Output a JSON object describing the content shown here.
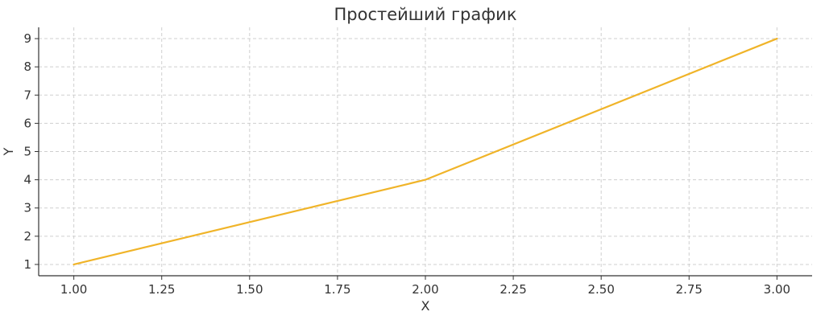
{
  "chart_data": {
    "type": "line",
    "title": "Простейший график",
    "xlabel": "X",
    "ylabel": "Y",
    "xlim": [
      0.9,
      3.1
    ],
    "ylim": [
      0.6,
      9.4
    ],
    "x_ticks": [
      "1.00",
      "1.25",
      "1.50",
      "1.75",
      "2.00",
      "2.25",
      "2.50",
      "2.75",
      "3.00"
    ],
    "y_ticks": [
      "1",
      "2",
      "3",
      "4",
      "5",
      "6",
      "7",
      "8",
      "9"
    ],
    "grid": true,
    "series": [
      {
        "color": "#f0b429",
        "x": [
          1,
          2,
          3
        ],
        "y": [
          1,
          4,
          9
        ]
      }
    ]
  }
}
